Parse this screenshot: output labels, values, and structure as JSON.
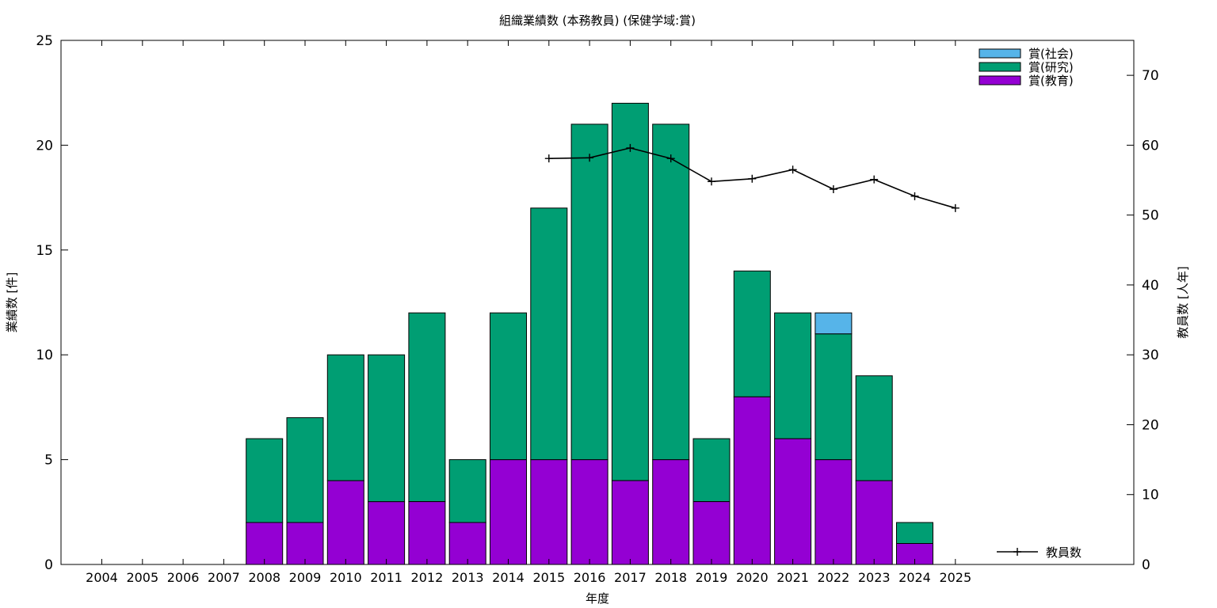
{
  "chart_data": {
    "type": "bar",
    "stacked": true,
    "title": "組織業績数 (本務教員) (保健学域:賞)",
    "xlabel": "年度",
    "ylabel": "業績数 [件]",
    "y2label": "教員数 [人年]",
    "ylim": [
      0,
      25
    ],
    "y2lim": [
      0,
      75
    ],
    "yticks": [
      "0",
      "5",
      "10",
      "15",
      "20",
      "25"
    ],
    "y2ticks": [
      "0",
      "10",
      "20",
      "30",
      "40",
      "50",
      "60",
      "70"
    ],
    "categories": [
      "2004",
      "2005",
      "2006",
      "2007",
      "2008",
      "2009",
      "2010",
      "2011",
      "2012",
      "2013",
      "2014",
      "2015",
      "2016",
      "2017",
      "2018",
      "2019",
      "2020",
      "2021",
      "2022",
      "2023",
      "2024",
      "2025"
    ],
    "series": [
      {
        "name": "賞(教育)",
        "color": "#9400d3",
        "values": [
          0,
          0,
          0,
          0,
          2,
          2,
          4,
          3,
          3,
          2,
          5,
          5,
          5,
          4,
          5,
          3,
          8,
          6,
          5,
          4,
          1,
          0
        ]
      },
      {
        "name": "賞(研究)",
        "color": "#009e73",
        "values": [
          0,
          0,
          0,
          0,
          4,
          5,
          6,
          7,
          9,
          3,
          7,
          12,
          16,
          18,
          16,
          3,
          6,
          6,
          6,
          5,
          1,
          0
        ]
      },
      {
        "name": "賞(社会)",
        "color": "#56b4e9",
        "values": [
          0,
          0,
          0,
          0,
          0,
          0,
          0,
          0,
          0,
          0,
          0,
          0,
          0,
          0,
          0,
          0,
          0,
          0,
          1,
          0,
          0,
          0
        ]
      }
    ],
    "line": {
      "name": "教員数",
      "axis": "y2",
      "color": "#000000",
      "points": [
        {
          "x": "2015",
          "y": 58.1
        },
        {
          "x": "2016",
          "y": 58.2
        },
        {
          "x": "2017",
          "y": 59.6
        },
        {
          "x": "2018",
          "y": 58.1
        },
        {
          "x": "2019",
          "y": 54.8
        },
        {
          "x": "2020",
          "y": 55.2
        },
        {
          "x": "2021",
          "y": 56.5
        },
        {
          "x": "2022",
          "y": 53.7
        },
        {
          "x": "2023",
          "y": 55.1
        },
        {
          "x": "2024",
          "y": 52.7
        },
        {
          "x": "2025",
          "y": 51.0
        }
      ]
    },
    "legend": "top-right",
    "grid": false
  }
}
